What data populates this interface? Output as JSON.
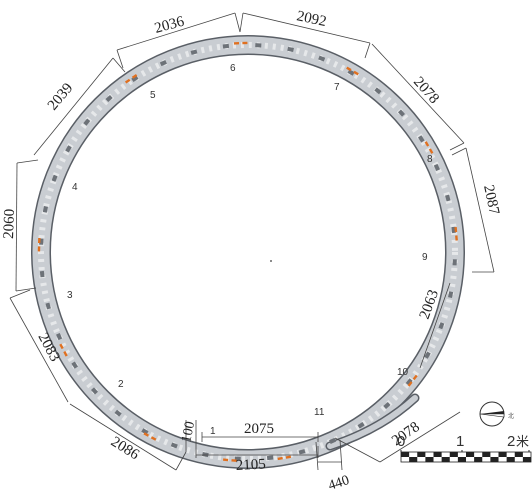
{
  "diagram": {
    "dimensions": [
      "2036",
      "2092",
      "2078",
      "2087",
      "2063",
      "2078",
      "440",
      "2105",
      "100",
      "2075",
      "2086",
      "2083",
      "2060",
      "2039"
    ],
    "segments": [
      "1",
      "2",
      "3",
      "4",
      "5",
      "6",
      "7",
      "8",
      "9",
      "10",
      "11"
    ],
    "scale": {
      "ticks": [
        "0",
        "1",
        "2"
      ],
      "unit": "米"
    },
    "colors": {
      "ring": "#c9cdd2",
      "ring_edge": "#5a5f66",
      "marker": "#e07020",
      "line": "#444444"
    },
    "icons": [
      "north-arrow-icon"
    ]
  }
}
